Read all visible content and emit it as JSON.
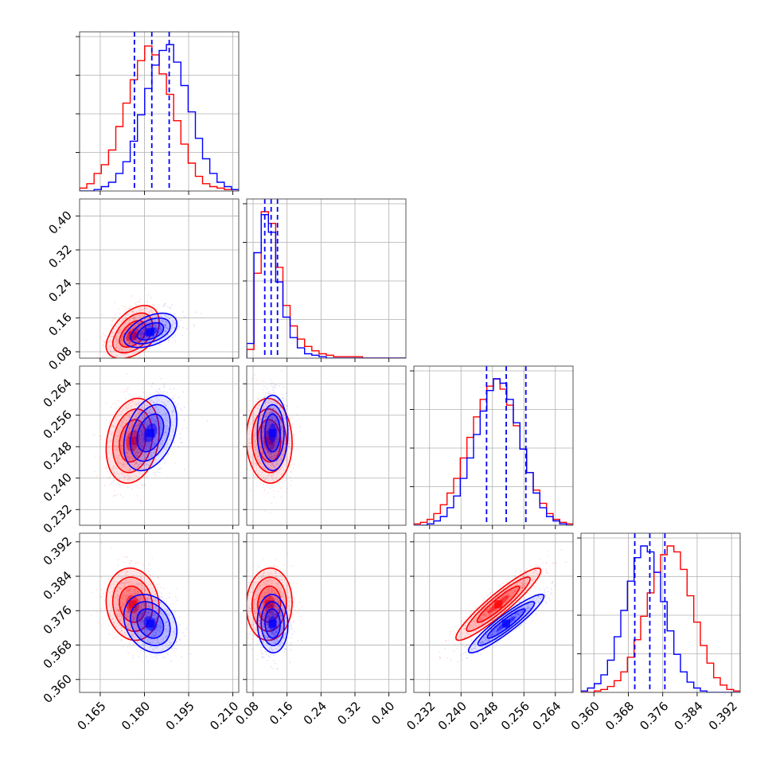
{
  "chart_data": {
    "type": "corner",
    "title": "",
    "parameters": [
      "",
      "",
      "",
      ""
    ],
    "colors": {
      "red": "#ff0000",
      "blue": "#0000ff"
    },
    "grid": true,
    "series": [
      {
        "color": "red",
        "means": [
          0.176,
          0.118,
          0.2495,
          0.3775
        ],
        "sds": [
          0.0045,
          0.027,
          0.0054,
          0.0042
        ]
      },
      {
        "color": "blue",
        "means": [
          0.182,
          0.126,
          0.2515,
          0.373
        ],
        "sds": [
          0.0045,
          0.018,
          0.0048,
          0.0034
        ]
      }
    ],
    "quantile_lines": [
      [
        0.1766,
        0.1825,
        0.1884
      ],
      [
        0.1075,
        0.1225,
        0.1375
      ],
      [
        0.2465,
        0.2515,
        0.2565
      ],
      [
        0.3695,
        0.373,
        0.3765
      ]
    ],
    "axes": [
      {
        "range": [
          0.158,
          0.212
        ],
        "ticks": [
          0.165,
          0.18,
          0.195,
          0.21
        ],
        "tick_labels": [
          "0.165",
          "0.180",
          "0.195",
          "0.210"
        ]
      },
      {
        "range": [
          0.065,
          0.44
        ],
        "ticks": [
          0.08,
          0.16,
          0.24,
          0.32,
          0.4
        ],
        "tick_labels": [
          "0.08",
          "0.16",
          "0.24",
          "0.32",
          "0.40"
        ]
      },
      {
        "range": [
          0.228,
          0.2685
        ],
        "ticks": [
          0.232,
          0.24,
          0.248,
          0.256,
          0.264
        ],
        "tick_labels": [
          "0.232",
          "0.240",
          "0.248",
          "0.256",
          "0.264"
        ]
      },
      {
        "range": [
          0.357,
          0.394
        ],
        "ticks": [
          0.36,
          0.368,
          0.376,
          0.384,
          0.392
        ],
        "tick_labels": [
          "0.360",
          "0.368",
          "0.376",
          "0.384",
          "0.392"
        ]
      }
    ],
    "histograms": [
      {
        "red": [
          2,
          5,
          12,
          18,
          28,
          44,
          60,
          76,
          89,
          99,
          93,
          80,
          66,
          48,
          32,
          19,
          10,
          5,
          3,
          2,
          1,
          1
        ],
        "blue": [
          0,
          0,
          1,
          3,
          6,
          12,
          20,
          34,
          52,
          70,
          86,
          96,
          100,
          88,
          72,
          54,
          36,
          22,
          12,
          6,
          3,
          1
        ]
      },
      {
        "red": [
          6,
          58,
          100,
          92,
          62,
          36,
          22,
          13,
          8,
          5,
          3,
          2,
          1,
          1,
          1,
          1,
          0,
          0,
          0,
          0,
          0,
          0
        ],
        "blue": [
          10,
          72,
          98,
          86,
          52,
          28,
          14,
          7,
          3,
          2,
          1,
          0,
          0,
          0,
          0,
          0,
          0,
          0,
          0,
          0,
          0,
          0
        ]
      },
      {
        "red": [
          1,
          2,
          4,
          8,
          14,
          22,
          32,
          46,
          60,
          74,
          86,
          95,
          100,
          93,
          82,
          68,
          52,
          36,
          24,
          15,
          8,
          4,
          2,
          1
        ],
        "blue": [
          0,
          0,
          1,
          3,
          6,
          12,
          20,
          32,
          46,
          62,
          78,
          92,
          100,
          97,
          86,
          70,
          52,
          36,
          22,
          12,
          6,
          3,
          1,
          0
        ]
      },
      {
        "red": [
          0,
          0,
          1,
          2,
          4,
          8,
          14,
          24,
          36,
          52,
          68,
          82,
          94,
          100,
          96,
          84,
          66,
          48,
          32,
          20,
          10,
          5,
          2,
          1
        ],
        "blue": [
          1,
          3,
          6,
          12,
          22,
          38,
          56,
          76,
          92,
          100,
          96,
          82,
          62,
          42,
          26,
          14,
          7,
          3,
          1,
          0,
          0,
          0,
          0,
          0
        ]
      }
    ]
  }
}
